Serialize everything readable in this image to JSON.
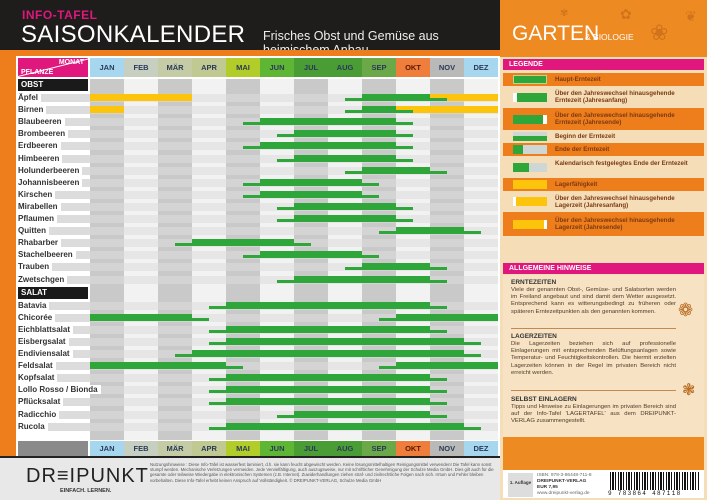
{
  "header": {
    "kicker": "INFO-TAFEL",
    "title": "SAISONKALENDER",
    "subtitle": "Frisches Obst und Gemüse aus heimischem Anbau"
  },
  "brand": {
    "main": "GARTEN",
    "sub": "& BIOLOGIE"
  },
  "corner": {
    "month_label": "MONAT",
    "plant_label": "PFLANZE"
  },
  "months": [
    "JAN",
    "FEB",
    "MÄR",
    "APR",
    "MAI",
    "JUN",
    "JUL",
    "AUG",
    "SEP",
    "OKT",
    "NOV",
    "DEZ"
  ],
  "month_colors": [
    "#a7d7ef",
    "#c7cfc0",
    "#c4cba5",
    "#c0c992",
    "#b2cc2a",
    "#5fb534",
    "#4a9c34",
    "#4a9c34",
    "#6aa848",
    "#ef7d3c",
    "#b9bab8",
    "#a7d7ef"
  ],
  "sections": {
    "obst": "OBST",
    "salat": "SALAT"
  },
  "chart_data": {
    "type": "table",
    "title": "Saisonkalender – Frisches Obst und Gemüse aus heimischem Anbau",
    "xlabel": "Monat",
    "ylabel": "Pflanze",
    "categories": [
      "JAN",
      "FEB",
      "MÄR",
      "APR",
      "MAI",
      "JUN",
      "JUL",
      "AUG",
      "SEP",
      "OKT",
      "NOV",
      "DEZ"
    ],
    "units": "month index 0–12 (0 = Jan start, 12 = Dec end); thin = Beginn/Ende der Erntezeit, main = Haupt-Erntezeit, storage = Lagerfähigkeit",
    "series": [
      {
        "group": "OBST",
        "name": "Äpfel",
        "thin": [
          [
            7.5,
            8
          ],
          [
            10,
            10.5
          ]
        ],
        "main": [
          [
            8,
            10
          ]
        ],
        "storage": [
          [
            0,
            3
          ],
          [
            10,
            12
          ]
        ]
      },
      {
        "group": "OBST",
        "name": "Birnen",
        "thin": [
          [
            7.5,
            8
          ],
          [
            9,
            9.5
          ]
        ],
        "main": [
          [
            8,
            9
          ]
        ],
        "storage": [
          [
            0,
            1
          ],
          [
            9,
            12
          ]
        ]
      },
      {
        "group": "OBST",
        "name": "Blaubeeren",
        "thin": [
          [
            4.5,
            5
          ],
          [
            9,
            9.5
          ]
        ],
        "main": [
          [
            5,
            9
          ]
        ],
        "storage": []
      },
      {
        "group": "OBST",
        "name": "Brombeeren",
        "thin": [
          [
            5.5,
            6
          ],
          [
            9,
            9.5
          ]
        ],
        "main": [
          [
            6,
            9
          ]
        ],
        "storage": []
      },
      {
        "group": "OBST",
        "name": "Erdbeeren",
        "thin": [
          [
            4.5,
            5
          ],
          [
            9,
            9.5
          ]
        ],
        "main": [
          [
            5,
            9
          ]
        ],
        "storage": []
      },
      {
        "group": "OBST",
        "name": "Himbeeren",
        "thin": [
          [
            5.5,
            6
          ],
          [
            9,
            9.5
          ]
        ],
        "main": [
          [
            6,
            9
          ]
        ],
        "storage": []
      },
      {
        "group": "OBST",
        "name": "Holunderbeeren",
        "thin": [
          [
            7.5,
            8
          ],
          [
            10,
            10.5
          ]
        ],
        "main": [
          [
            8,
            10
          ]
        ],
        "storage": []
      },
      {
        "group": "OBST",
        "name": "Johannisbeeren",
        "thin": [
          [
            4.5,
            5
          ],
          [
            8,
            8.5
          ]
        ],
        "main": [
          [
            5,
            8
          ]
        ],
        "storage": []
      },
      {
        "group": "OBST",
        "name": "Kirschen",
        "thin": [
          [
            4.5,
            5
          ],
          [
            8,
            8.5
          ]
        ],
        "main": [
          [
            5,
            8
          ]
        ],
        "storage": []
      },
      {
        "group": "OBST",
        "name": "Mirabellen",
        "thin": [
          [
            5.5,
            6
          ],
          [
            9,
            9.5
          ]
        ],
        "main": [
          [
            6,
            9
          ]
        ],
        "storage": []
      },
      {
        "group": "OBST",
        "name": "Pflaumen",
        "thin": [
          [
            5.5,
            6
          ],
          [
            9,
            9.5
          ]
        ],
        "main": [
          [
            6,
            9
          ]
        ],
        "storage": []
      },
      {
        "group": "OBST",
        "name": "Quitten",
        "thin": [
          [
            8.5,
            9
          ],
          [
            11,
            11.5
          ]
        ],
        "main": [
          [
            9,
            11
          ]
        ],
        "storage": []
      },
      {
        "group": "OBST",
        "name": "Rhabarber",
        "thin": [
          [
            2.5,
            3
          ],
          [
            6,
            6.5
          ]
        ],
        "main": [
          [
            3,
            6
          ]
        ],
        "storage": []
      },
      {
        "group": "OBST",
        "name": "Stachelbeeren",
        "thin": [
          [
            4.5,
            5
          ],
          [
            8,
            8.5
          ]
        ],
        "main": [
          [
            5,
            8
          ]
        ],
        "storage": []
      },
      {
        "group": "OBST",
        "name": "Trauben",
        "thin": [
          [
            7.5,
            8
          ],
          [
            10,
            10.5
          ]
        ],
        "main": [
          [
            8,
            10
          ]
        ],
        "storage": []
      },
      {
        "group": "OBST",
        "name": "Zwetschgen",
        "thin": [
          [
            5.5,
            6
          ],
          [
            10,
            10.5
          ]
        ],
        "main": [
          [
            6,
            10
          ]
        ],
        "storage": []
      },
      {
        "group": "SALAT",
        "name": "Batavia",
        "thin": [
          [
            3.5,
            4
          ],
          [
            10,
            10.5
          ]
        ],
        "main": [
          [
            4,
            10
          ]
        ],
        "storage": []
      },
      {
        "group": "SALAT",
        "name": "Chicorée",
        "thin": [
          [
            3,
            3.5
          ],
          [
            8.5,
            9
          ]
        ],
        "main": [
          [
            0,
            3
          ],
          [
            9,
            12
          ]
        ],
        "storage": []
      },
      {
        "group": "SALAT",
        "name": "Eichblattsalat",
        "thin": [
          [
            3.5,
            4
          ],
          [
            10,
            10.5
          ]
        ],
        "main": [
          [
            4,
            10
          ]
        ],
        "storage": []
      },
      {
        "group": "SALAT",
        "name": "Eisbergsalat",
        "thin": [
          [
            3.5,
            4
          ],
          [
            11,
            11.5
          ]
        ],
        "main": [
          [
            4,
            11
          ]
        ],
        "storage": []
      },
      {
        "group": "SALAT",
        "name": "Endiviensalat",
        "thin": [
          [
            2.5,
            3
          ],
          [
            11,
            11.5
          ]
        ],
        "main": [
          [
            3,
            11
          ]
        ],
        "storage": []
      },
      {
        "group": "SALAT",
        "name": "Feldsalat",
        "thin": [
          [
            4,
            4.5
          ],
          [
            8.5,
            9
          ]
        ],
        "main": [
          [
            0,
            4
          ],
          [
            9,
            12
          ]
        ],
        "storage": []
      },
      {
        "group": "SALAT",
        "name": "Kopfsalat",
        "thin": [
          [
            3.5,
            4
          ],
          [
            10,
            10.5
          ]
        ],
        "main": [
          [
            4,
            10
          ]
        ],
        "storage": []
      },
      {
        "group": "SALAT",
        "name": "Lollo Rosso / Bionda",
        "thin": [
          [
            3.5,
            4
          ],
          [
            10,
            10.5
          ]
        ],
        "main": [
          [
            4,
            10
          ]
        ],
        "storage": []
      },
      {
        "group": "SALAT",
        "name": "Pflücksalat",
        "thin": [
          [
            3.5,
            4
          ],
          [
            10,
            10.5
          ]
        ],
        "main": [
          [
            4,
            10
          ]
        ],
        "storage": []
      },
      {
        "group": "SALAT",
        "name": "Radicchio",
        "thin": [
          [
            5.5,
            6
          ],
          [
            10,
            10.5
          ]
        ],
        "main": [
          [
            6,
            10
          ]
        ],
        "storage": []
      },
      {
        "group": "SALAT",
        "name": "Rucola",
        "thin": [
          [
            3.5,
            4
          ],
          [
            11,
            11.5
          ]
        ],
        "main": [
          [
            4,
            11
          ]
        ],
        "storage": []
      }
    ],
    "colors": {
      "harvest": "#2fa63a",
      "storage": "#fcc40a"
    }
  },
  "legend": {
    "title": "LEGENDE",
    "items": [
      {
        "label": "Haupt-Erntezeit",
        "type": "main"
      },
      {
        "label": "Über den Jahreswechsel hinausgehende Erntezeit (Jahresanfang)",
        "type": "main-start"
      },
      {
        "label": "Über den Jahreswechsel hinausgehende Erntezeit (Jahresende)",
        "type": "main-end"
      },
      {
        "label": "Beginn der Erntezeit",
        "type": "begin"
      },
      {
        "label": "Ende der Erntezeit",
        "type": "end"
      },
      {
        "label": "Kalendarisch festgelegtes Ende der Erntezeit",
        "type": "fixed-end"
      },
      {
        "label": "Lagerfähigkeit",
        "type": "storage"
      },
      {
        "label": "Über den Jahreswechsel hinausgehende Lagerzeit (Jahresanfang)",
        "type": "storage-start"
      },
      {
        "label": "Über den Jahreswechsel hinausgehende Lagerzeit (Jahresende)",
        "type": "storage-end"
      }
    ]
  },
  "hints": {
    "title": "ALLGEMEINE HINWEISE",
    "sections": [
      {
        "heading": "ERNTEZEITEN",
        "text": "Viele der genannten Obst-, Gemüse- und Salatsorten werden im Freiland angebaut und sind damit dem Wetter ausgesetzt. Entsprechend kann es witterungsbedingt zu früheren oder späteren Erntezeitpunkten als den genannten kommen."
      },
      {
        "heading": "LAGERZEITEN",
        "text": "Die Lagerzeiten beziehen sich auf professionelle Einlagerungen mit entsprechenden Belüftungsanlagen sowie Temperatur- und Feuchtigkeitskontrollen. Die hiermit erzielten Lagerzeiten können in der Regel im privaten Bereich nicht erreicht werden."
      },
      {
        "heading": "SELBST EINLAGERN",
        "text": "Tipps und Hinweise zu Einlagerungen im privaten Bereich sind auf der Info-Tafel 'LAGERTAFEL' aus dem DREIPUNKT-VERLAG zusammengestellt."
      }
    ]
  },
  "footer": {
    "logo": "DR≡IPUNKT",
    "logo_sub": "EINFACH. LERNEN.",
    "legal": "Nutzungshinweise : Diese Info-Tafel ist wasserfest laminiert, d.h. sie kann feucht abgewischt werden. Keine lösungsmittelhaltigen Reinigungsmittel verwenden! Die Tafel kann sonst stumpf werden. Mechanische Verletzungen vermeiden. Jede Vervielfältigung, auch auszugsweise, nur mit schriftlicher Genehmigung der Schulze Media GmbH. Dies gilt auch für die gesamte oder teilweise Wiedergabe in elektronischen Systemen (z.B. Internet). Zuwiderhandlungen ziehen straf- und zivilrechtliche Folgen nach sich. Irrtum und Fehler bleiben vorbehalten. Diese Info-Tafel erhebt keinen Anspruch auf Vollständigkeit. © DREIPUNKT-VERLAG, Schulze Media GmbH",
    "auflage": "1. Auflage",
    "isbn": "ISBN: 978-3-86448-711-8",
    "publisher": "DREIPUNKT-VERLAG",
    "price": "EUR 7,95",
    "url": "www.dreipunkt-verlag.de",
    "barcode": "9 783864 487118"
  }
}
